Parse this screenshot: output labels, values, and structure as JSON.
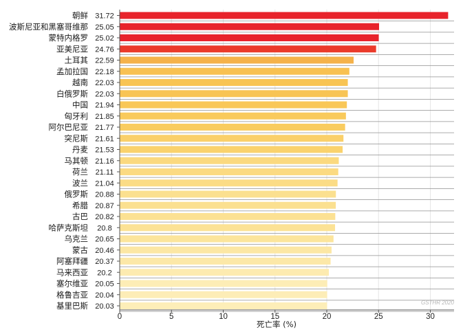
{
  "chart_data": {
    "type": "bar",
    "orientation": "horizontal",
    "categories": [
      "朝鲜",
      "波斯尼亚和黑塞哥维那",
      "蒙特内格罗",
      "亚美尼亚",
      "土耳其",
      "孟加拉国",
      "越南",
      "白俄罗斯",
      "中国",
      "匈牙利",
      "阿尔巴尼亚",
      "突尼斯",
      "丹麦",
      "马其顿",
      "荷兰",
      "波兰",
      "俄罗斯",
      "希腊",
      "古巴",
      "哈萨克斯坦",
      "乌克兰",
      "蒙古",
      "阿塞拜疆",
      "马来西亚",
      "塞尔维亚",
      "格鲁吉亚",
      "基里巴斯"
    ],
    "values": [
      31.72,
      25.05,
      25.02,
      24.76,
      22.59,
      22.18,
      22.03,
      22.03,
      21.94,
      21.85,
      21.77,
      21.61,
      21.53,
      21.16,
      21.11,
      21.04,
      20.88,
      20.87,
      20.82,
      20.8,
      20.65,
      20.46,
      20.37,
      20.2,
      20.05,
      20.04,
      20.03
    ],
    "value_labels": [
      "31.72",
      "25.05",
      "25.02",
      "24.76",
      "22.59",
      "22.18",
      "22.03",
      "22.03",
      "21.94",
      "21.85",
      "21.77",
      "21.61",
      "21.53",
      "21.16",
      "21.11",
      "21.04",
      "20.88",
      "20.87",
      "20.82",
      "20.8",
      "20.65",
      "20.46",
      "20.37",
      "20.2",
      "20.05",
      "20.04",
      "20.03"
    ],
    "bar_colors": [
      "#e8232b",
      "#e8232b",
      "#e8232b",
      "#eb3a2a",
      "#f5b24a",
      "#f8c152",
      "#f8c454",
      "#f8c454",
      "#f9c757",
      "#f9ca5c",
      "#f9cc60",
      "#fad06a",
      "#fad26d",
      "#fbd97f",
      "#fbda82",
      "#fbdc86",
      "#fbe08f",
      "#fbe090",
      "#fce193",
      "#fce295",
      "#fce59c",
      "#fce7a4",
      "#fce8a8",
      "#fdebb0",
      "#fdedb6",
      "#fdedb7",
      "#fdeeb8"
    ],
    "xlim": [
      0,
      32
    ],
    "xticks": [
      0,
      5,
      10,
      15,
      20,
      25,
      30
    ],
    "xtick_labels": [
      "0",
      "5",
      "10",
      "15",
      "20",
      "25",
      "30"
    ],
    "xlabel": "死亡率 (%)",
    "grid": "vertical and horizontal",
    "credit": "GSTHR 2020"
  }
}
